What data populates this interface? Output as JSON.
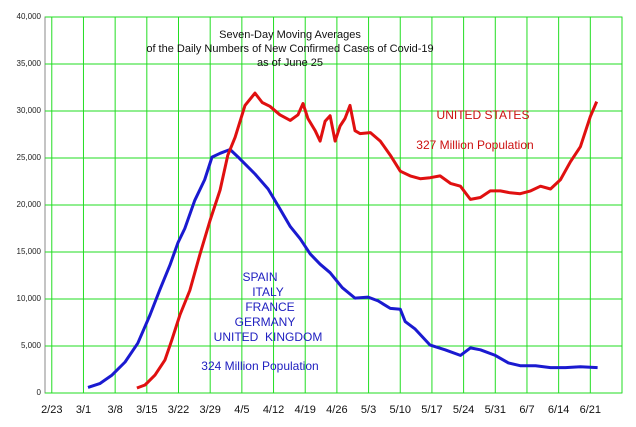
{
  "chart_data": {
    "type": "line",
    "title": [
      "Seven-Day Moving Averages",
      "of the Daily Numbers of New Confirmed Cases of Covid-19",
      "as of June 25"
    ],
    "xlim": [
      -1.5,
      126
    ],
    "xticks": [
      {
        "value": 0,
        "label": "2/23"
      },
      {
        "value": 7,
        "label": "3/1"
      },
      {
        "value": 14,
        "label": "3/8"
      },
      {
        "value": 21,
        "label": "3/15"
      },
      {
        "value": 28,
        "label": "3/22"
      },
      {
        "value": 35,
        "label": "3/29"
      },
      {
        "value": 42,
        "label": "4/5"
      },
      {
        "value": 49,
        "label": "4/12"
      },
      {
        "value": 56,
        "label": "4/19"
      },
      {
        "value": 63,
        "label": "4/26"
      },
      {
        "value": 70,
        "label": "5/3"
      },
      {
        "value": 77,
        "label": "5/10"
      },
      {
        "value": 84,
        "label": "5/17"
      },
      {
        "value": 91,
        "label": "5/24"
      },
      {
        "value": 98,
        "label": "5/31"
      },
      {
        "value": 105,
        "label": "6/7"
      },
      {
        "value": 112,
        "label": "6/14"
      },
      {
        "value": 119,
        "label": "6/21"
      }
    ],
    "ylim": [
      0,
      40000
    ],
    "yticks": [
      0,
      {
        "value": 5000,
        "label": "5,000"
      },
      {
        "value": 10000,
        "label": "10,000"
      },
      {
        "value": 15000,
        "label": "15,000"
      },
      {
        "value": 20000,
        "label": "20,000"
      },
      {
        "value": 25000,
        "label": "25,000"
      },
      {
        "value": 30000,
        "label": "30,000"
      },
      {
        "value": 35000,
        "label": "35,000"
      },
      {
        "value": 40000,
        "label": "40,000"
      }
    ],
    "grid": true,
    "grid_color": "#22dd22",
    "series": [
      {
        "color": "#1a1ad0",
        "x": [
          8,
          10.6,
          13.3,
          16.2,
          19,
          21.7,
          23.9,
          26.1,
          27.9,
          29.4,
          31.6,
          33.8,
          35.4,
          37.2,
          39.4,
          41.6,
          44.9,
          47.8,
          50.4,
          52.7,
          54.9,
          57.1,
          59.3,
          61.5,
          64.2,
          67,
          69.9,
          72.1,
          74.8,
          77,
          78.1,
          80.3,
          83.6,
          86.9,
          90.3,
          92.5,
          94.7,
          98,
          100.9,
          103.5,
          106.9,
          110.2,
          113.5,
          116.8,
          120.6
        ],
        "values": [
          600,
          1000,
          1900,
          3300,
          5300,
          8300,
          11000,
          13600,
          16000,
          17500,
          20500,
          22700,
          25100,
          25500,
          25900,
          24900,
          23300,
          21700,
          19600,
          17700,
          16400,
          14800,
          13700,
          12800,
          11200,
          10100,
          10200,
          9800,
          9000,
          8900,
          7600,
          6800,
          5100,
          4600,
          4000,
          4800,
          4600,
          4000,
          3200,
          2900,
          2900,
          2700,
          2700,
          2800,
          2700
        ]
      },
      {
        "color": "#e01010",
        "x": [
          18.8,
          20.6,
          22.8,
          25,
          26.5,
          28.3,
          30.5,
          32.7,
          35,
          37.2,
          38.9,
          40.5,
          42.7,
          44.9,
          46.5,
          48.2,
          50.4,
          52.7,
          54.4,
          55.5,
          56.6,
          58.2,
          59.3,
          60.4,
          61.5,
          62.6,
          63.7,
          64.8,
          65.9,
          67,
          68.1,
          70.4,
          72.6,
          74.8,
          77,
          79.2,
          81.4,
          83.6,
          85.8,
          88.1,
          90.3,
          92.5,
          94.7,
          96.9,
          99.1,
          101.3,
          103.5,
          105.8,
          108,
          110.2,
          112.4,
          114.6,
          116.8,
          119,
          120.4
        ],
        "values": [
          530,
          850,
          1900,
          3500,
          5600,
          8300,
          10900,
          14700,
          18400,
          21600,
          25300,
          27200,
          30600,
          31900,
          30900,
          30500,
          29600,
          29000,
          29600,
          30800,
          29200,
          27900,
          26800,
          28900,
          29500,
          26800,
          28400,
          29200,
          30600,
          27900,
          27600,
          27700,
          26800,
          25300,
          23600,
          23100,
          22800,
          22900,
          23100,
          22300,
          22000,
          20600,
          20800,
          21500,
          21500,
          21300,
          21200,
          21500,
          22000,
          21700,
          22700,
          24600,
          26200,
          29400,
          31000
        ]
      }
    ],
    "annotations": [
      {
        "text": "UNITED STATES",
        "color": "#cc1010"
      },
      {
        "text": "327 Million Population",
        "color": "#cc1010"
      },
      {
        "text": "SPAIN",
        "color": "#2020c0"
      },
      {
        "text": "ITALY",
        "color": "#2020c0"
      },
      {
        "text": "FRANCE",
        "color": "#2020c0"
      },
      {
        "text": "GERMANY",
        "color": "#2020c0"
      },
      {
        "text": "UNITED  KINGDOM",
        "color": "#2020c0"
      },
      {
        "text": "324 Million Population",
        "color": "#2020c0"
      }
    ]
  }
}
